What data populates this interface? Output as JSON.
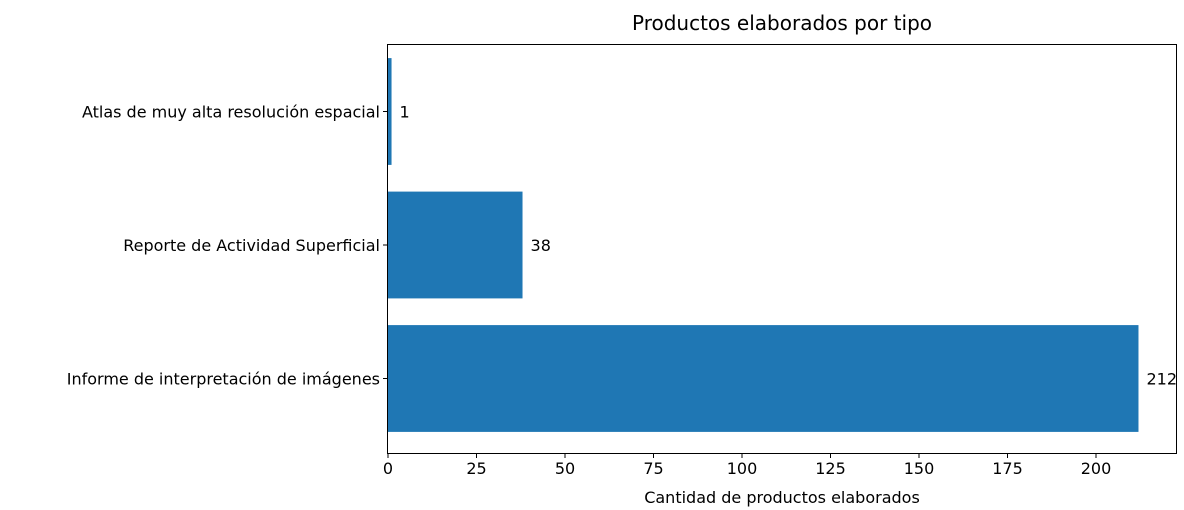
{
  "chart_data": {
    "type": "bar",
    "orientation": "horizontal",
    "title": "Productos elaborados por tipo",
    "xlabel": "Cantidad de productos elaborados",
    "ylabel": "",
    "categories": [
      "Informe de interpretación de imágenes",
      "Reporte de Actividad Superficial",
      "Atlas de muy alta resolución espacial"
    ],
    "values": [
      212,
      38,
      1
    ],
    "data_labels": [
      "212",
      "38",
      "1"
    ],
    "xlim": [
      0,
      222.6
    ],
    "xticks": [
      0,
      25,
      50,
      75,
      100,
      125,
      150,
      175,
      200
    ],
    "grid": false,
    "legend": "none",
    "bar_color": "#1f77b4"
  }
}
